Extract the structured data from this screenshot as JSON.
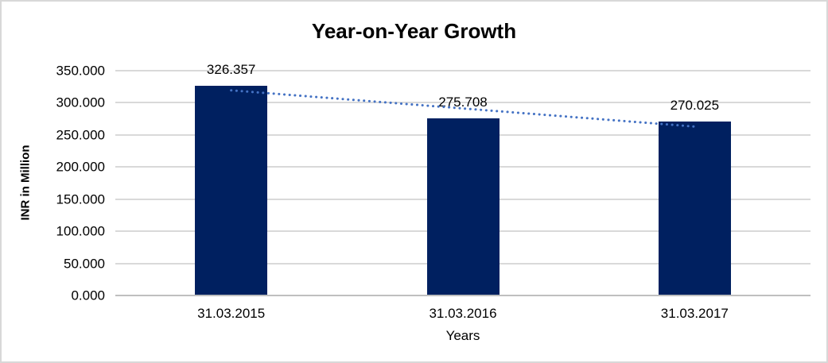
{
  "chart_data": {
    "type": "bar",
    "title": "Year-on-Year Growth",
    "xlabel": "Years",
    "ylabel": "INR in Million",
    "categories": [
      "31.03.2015",
      "31.03.2016",
      "31.03.2017"
    ],
    "values": [
      326.357,
      275.708,
      270.025
    ],
    "data_labels": [
      "326.357",
      "275.708",
      "270.025"
    ],
    "ylim": [
      0,
      350
    ],
    "ytick_step": 50,
    "ytick_labels": [
      "0.000",
      "50.000",
      "100.000",
      "150.000",
      "200.000",
      "250.000",
      "300.000",
      "350.000"
    ],
    "grid": true,
    "legend": false,
    "trendline": {
      "type": "linear",
      "style": "dotted"
    },
    "colors": {
      "bar": "#002060",
      "trendline": "#4472c4",
      "gridline": "#d9d9d9",
      "axis_line": "#bfbfbf",
      "text": "#000000",
      "frame_border": "#d8d8d8"
    }
  }
}
